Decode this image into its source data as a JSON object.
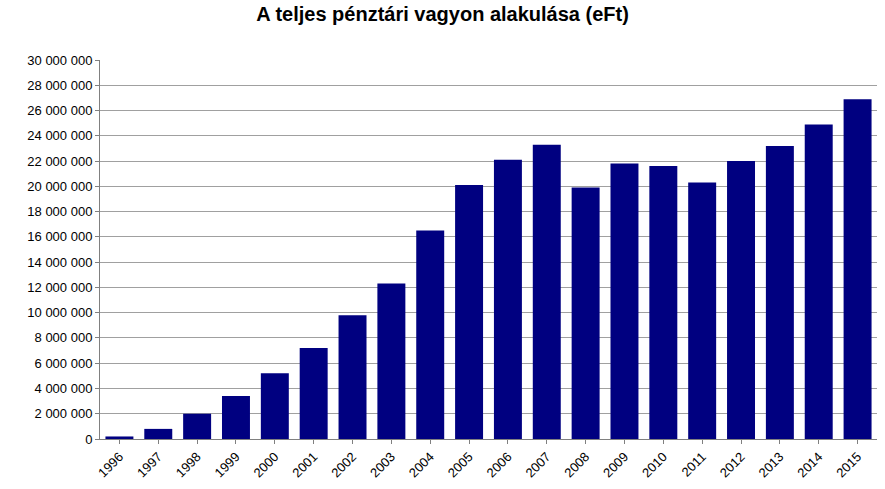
{
  "chart_data": {
    "type": "bar",
    "title": "A teljes pénztári vagyon alakulása (eFt)",
    "categories": [
      "1996",
      "1997",
      "1998",
      "1999",
      "2000",
      "2001",
      "2002",
      "2003",
      "2004",
      "2005",
      "2006",
      "2007",
      "2008",
      "2009",
      "2010",
      "2011",
      "2012",
      "2013",
      "2014",
      "2015"
    ],
    "values": [
      200000,
      800000,
      2000000,
      3400000,
      5200000,
      7200000,
      9800000,
      12300000,
      16500000,
      20100000,
      22100000,
      23300000,
      19900000,
      21800000,
      21600000,
      20300000,
      22000000,
      23200000,
      24900000,
      26900000
    ],
    "color": "#000080",
    "ylim": [
      0,
      30000000
    ],
    "yticks": [
      0,
      {
        "value": 2000000,
        "label": "2 000 000"
      },
      {
        "value": 4000000,
        "label": "4 000 000"
      },
      {
        "value": 6000000,
        "label": "6 000 000"
      },
      {
        "value": 8000000,
        "label": "8 000 000"
      },
      {
        "value": 10000000,
        "label": "10 000 000"
      },
      {
        "value": 12000000,
        "label": "12 000 000"
      },
      {
        "value": 14000000,
        "label": "14 000 000"
      },
      {
        "value": 16000000,
        "label": "16 000 000"
      },
      {
        "value": 18000000,
        "label": "18 000 000"
      },
      {
        "value": 20000000,
        "label": "20 000 000"
      },
      {
        "value": 22000000,
        "label": "22 000 000"
      },
      {
        "value": 24000000,
        "label": "24 000 000"
      },
      {
        "value": 26000000,
        "label": "26 000 000"
      },
      {
        "value": 28000000,
        "label": "28 000 000"
      },
      {
        "value": 30000000,
        "label": "30 000 000"
      }
    ],
    "grid": true
  }
}
